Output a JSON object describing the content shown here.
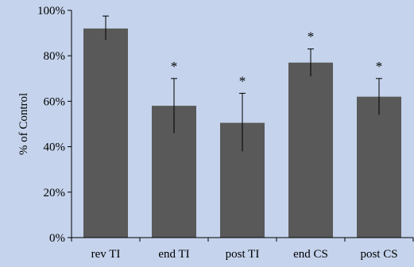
{
  "colors": {
    "background": "#c5d3ec",
    "bar": "#595959",
    "axis": "#000000",
    "error_bar": "#000000"
  },
  "chart_data": {
    "type": "bar",
    "title": "",
    "xlabel": "",
    "ylabel": "% of Control",
    "categories": [
      "rev TI",
      "end TI",
      "post TI",
      "end CS",
      "post CS"
    ],
    "values": [
      92,
      58,
      50.5,
      77,
      62
    ],
    "error_high": [
      97.5,
      70,
      63.5,
      83,
      70
    ],
    "error_low": [
      87,
      46,
      38,
      71,
      54
    ],
    "significance": [
      "",
      "*",
      "*",
      "*",
      "*"
    ],
    "ylim": [
      0,
      100
    ],
    "yticks": [
      0,
      20,
      40,
      60,
      80,
      100
    ],
    "ytick_labels": [
      "0%",
      "20%",
      "40%",
      "60%",
      "80%",
      "100%"
    ],
    "grid": false,
    "legend": "none"
  }
}
